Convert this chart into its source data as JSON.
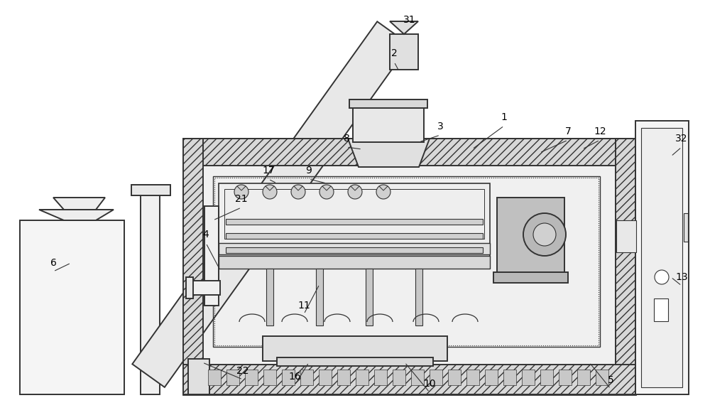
{
  "bg_color": "#ffffff",
  "lc": "#333333",
  "lw": 1.4,
  "figsize": [
    10.0,
    5.91
  ]
}
